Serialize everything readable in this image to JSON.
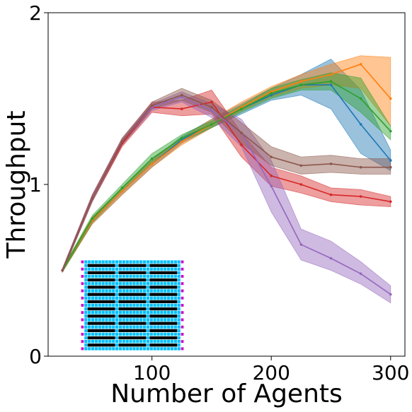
{
  "chart_data": {
    "type": "line",
    "title": "",
    "xlabel": "Number of Agents",
    "ylabel": "Throughput",
    "xlim": [
      13,
      312
    ],
    "ylim": [
      0,
      2
    ],
    "xticks": [
      "100",
      "200",
      "300"
    ],
    "yticks": [
      "0",
      "1",
      "2"
    ],
    "grid": false,
    "legend": "none",
    "x": [
      25,
      50,
      75,
      100,
      125,
      150,
      175,
      200,
      225,
      250,
      275,
      300
    ],
    "series": [
      {
        "color": "#1f77b4",
        "values": [
          0.5,
          0.79,
          0.96,
          1.12,
          1.26,
          1.35,
          1.44,
          1.52,
          1.58,
          1.58,
          1.35,
          1.14
        ],
        "lower": [
          0.49,
          0.77,
          0.94,
          1.1,
          1.24,
          1.33,
          1.41,
          1.49,
          1.52,
          1.44,
          1.18,
          1.08
        ],
        "upper": [
          0.51,
          0.81,
          0.98,
          1.14,
          1.28,
          1.38,
          1.47,
          1.56,
          1.64,
          1.73,
          1.55,
          1.2
        ]
      },
      {
        "color": "#ff7f0e",
        "values": [
          0.5,
          0.79,
          0.96,
          1.12,
          1.25,
          1.35,
          1.45,
          1.54,
          1.6,
          1.64,
          1.7,
          1.5
        ],
        "lower": [
          0.49,
          0.77,
          0.94,
          1.1,
          1.23,
          1.33,
          1.43,
          1.51,
          1.56,
          1.58,
          1.56,
          1.34
        ],
        "upper": [
          0.51,
          0.81,
          0.98,
          1.14,
          1.27,
          1.38,
          1.48,
          1.57,
          1.64,
          1.7,
          1.75,
          1.74
        ]
      },
      {
        "color": "#2ca02c",
        "values": [
          0.5,
          0.8,
          0.98,
          1.15,
          1.27,
          1.35,
          1.44,
          1.53,
          1.58,
          1.6,
          1.5,
          1.31
        ],
        "lower": [
          0.49,
          0.78,
          0.96,
          1.12,
          1.25,
          1.33,
          1.42,
          1.5,
          1.55,
          1.55,
          1.42,
          1.26
        ],
        "upper": [
          0.51,
          0.82,
          1.0,
          1.18,
          1.29,
          1.37,
          1.46,
          1.56,
          1.61,
          1.65,
          1.62,
          1.34
        ]
      },
      {
        "color": "#d62728",
        "values": [
          0.5,
          0.92,
          1.24,
          1.45,
          1.44,
          1.48,
          1.23,
          1.05,
          1.0,
          0.94,
          0.93,
          0.9
        ],
        "lower": [
          0.49,
          0.9,
          1.22,
          1.42,
          1.4,
          1.41,
          1.16,
          0.99,
          0.95,
          0.9,
          0.88,
          0.87
        ],
        "upper": [
          0.51,
          0.94,
          1.26,
          1.48,
          1.49,
          1.55,
          1.3,
          1.1,
          1.05,
          0.98,
          0.97,
          0.93
        ]
      },
      {
        "color": "#9467bd",
        "values": [
          0.5,
          0.92,
          1.25,
          1.45,
          1.51,
          1.43,
          1.3,
          0.99,
          0.65,
          0.57,
          0.48,
          0.36
        ],
        "lower": [
          0.49,
          0.9,
          1.23,
          1.43,
          1.48,
          1.39,
          1.22,
          0.84,
          0.56,
          0.5,
          0.42,
          0.31
        ],
        "upper": [
          0.51,
          0.94,
          1.27,
          1.47,
          1.54,
          1.47,
          1.38,
          1.14,
          0.74,
          0.67,
          0.55,
          0.41
        ]
      },
      {
        "color": "#8c564b",
        "values": [
          0.5,
          0.92,
          1.25,
          1.46,
          1.52,
          1.45,
          1.3,
          1.16,
          1.11,
          1.12,
          1.1,
          1.1
        ],
        "lower": [
          0.49,
          0.9,
          1.23,
          1.44,
          1.49,
          1.42,
          1.24,
          1.11,
          1.06,
          1.07,
          1.06,
          1.06
        ],
        "upper": [
          0.51,
          0.94,
          1.27,
          1.48,
          1.56,
          1.49,
          1.36,
          1.22,
          1.16,
          1.17,
          1.15,
          1.15
        ]
      }
    ],
    "inset": {
      "type": "warehouse-grid-map",
      "colors": {
        "background": "#00bfff",
        "cell_line": "#ffffff",
        "shelf": "#000000",
        "station": "#cc00cc"
      }
    }
  }
}
